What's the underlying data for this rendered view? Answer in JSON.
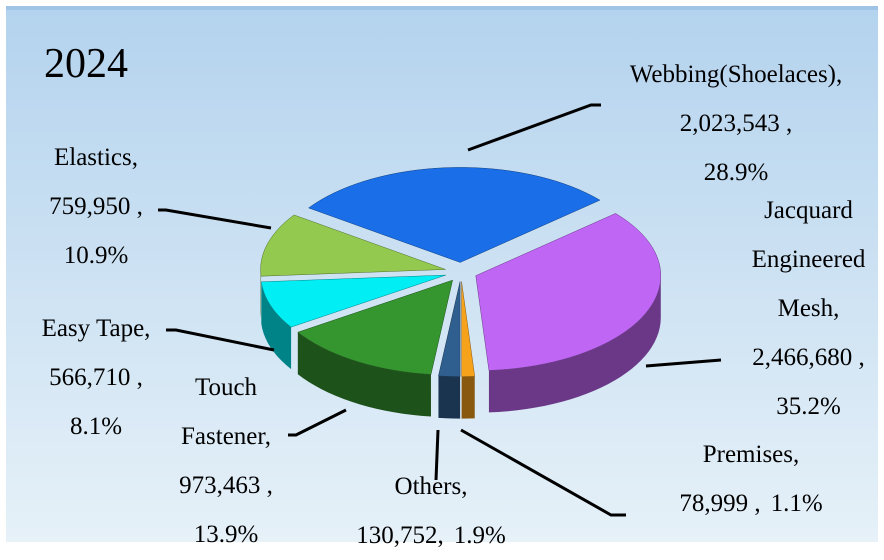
{
  "chart_data": {
    "type": "pie",
    "title": "2024",
    "categories": [
      "Webbing(Shoelaces),",
      "Jacquard Engineered Mesh,",
      "Premises,",
      "Others,",
      "Touch Fastener,",
      "Easy Tape,",
      "Elastics,"
    ],
    "values": [
      2023543,
      2466680,
      78999,
      130752,
      973463,
      566710,
      759950
    ],
    "value_labels": [
      "2,023,543 ,",
      "2,466,680 ,",
      "78,999 ,",
      "130,752,",
      "973,463 ,",
      "566,710 ,",
      "759,950 ,"
    ],
    "percentages": [
      28.9,
      35.2,
      1.1,
      1.9,
      13.9,
      8.1,
      10.9
    ],
    "percentage_labels": [
      "28.9%",
      "35.2%",
      "1.1%",
      "1.9%",
      "13.9%",
      "8.1%",
      "10.9%"
    ],
    "colors": [
      "#1a6fe8",
      "#c066f5",
      "#f7a21b",
      "#2f5f8f",
      "#35952f",
      "#00eef4",
      "#92c94e"
    ]
  }
}
